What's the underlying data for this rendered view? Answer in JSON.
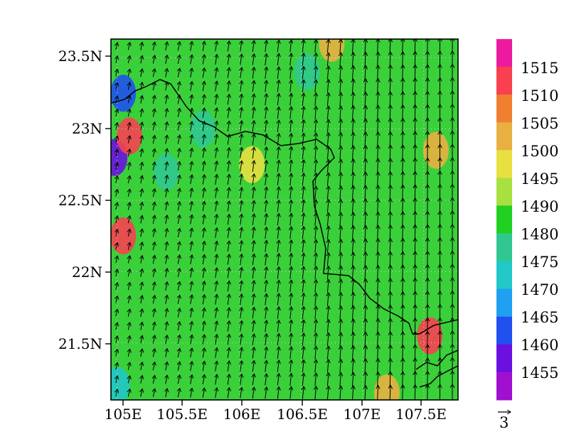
{
  "map": {
    "type": "filled-contour-with-vectors",
    "lat_ticks": [
      "23.5N",
      "23N",
      "22.5N",
      "22N",
      "21.5N"
    ],
    "lon_ticks": [
      "105E",
      "105.5E",
      "106E",
      "106.5E",
      "107E",
      "107.5E"
    ],
    "lat_values": [
      23.5,
      23.0,
      22.5,
      22.0,
      21.5
    ],
    "lon_values": [
      105.0,
      105.5,
      106.0,
      106.5,
      107.0,
      107.5
    ],
    "extent": {
      "lon": [
        104.95,
        107.78
      ],
      "lat": [
        21.1,
        23.63
      ]
    },
    "grid": "dotted"
  },
  "colorbar": {
    "labels": [
      "1515",
      "1510",
      "1505",
      "1500",
      "1495",
      "1490",
      "1480",
      "1475",
      "1470",
      "1465",
      "1460",
      "1455"
    ],
    "colors": [
      "#ee1aa0",
      "#f84050",
      "#f08030",
      "#e8b040",
      "#e8e040",
      "#a8e040",
      "#20d020",
      "#30c890",
      "#20c8c8",
      "#20a0f0",
      "#2050f0",
      "#6a10e0",
      "#a010d0"
    ]
  },
  "vector_reference": {
    "label": "3"
  },
  "field": {
    "base_color": "#3ad03a",
    "blobs": [
      {
        "lon": 105.05,
        "lat": 23.25,
        "value": "1460"
      },
      {
        "lon": 104.98,
        "lat": 22.8,
        "value": "1455"
      },
      {
        "lon": 105.1,
        "lat": 22.95,
        "value": "1510"
      },
      {
        "lon": 105.05,
        "lat": 22.25,
        "value": "1510"
      },
      {
        "lon": 107.55,
        "lat": 21.55,
        "value": "1510"
      },
      {
        "lon": 106.75,
        "lat": 23.6,
        "value": "1500"
      },
      {
        "lon": 107.6,
        "lat": 22.85,
        "value": "1500"
      },
      {
        "lon": 106.1,
        "lat": 22.75,
        "value": "1495"
      },
      {
        "lon": 107.2,
        "lat": 21.15,
        "value": "1500"
      },
      {
        "lon": 105.4,
        "lat": 22.7,
        "value": "1475"
      },
      {
        "lon": 105.7,
        "lat": 23.0,
        "value": "1475"
      },
      {
        "lon": 106.55,
        "lat": 23.4,
        "value": "1475"
      },
      {
        "lon": 105.0,
        "lat": 21.2,
        "value": "1470"
      }
    ]
  }
}
